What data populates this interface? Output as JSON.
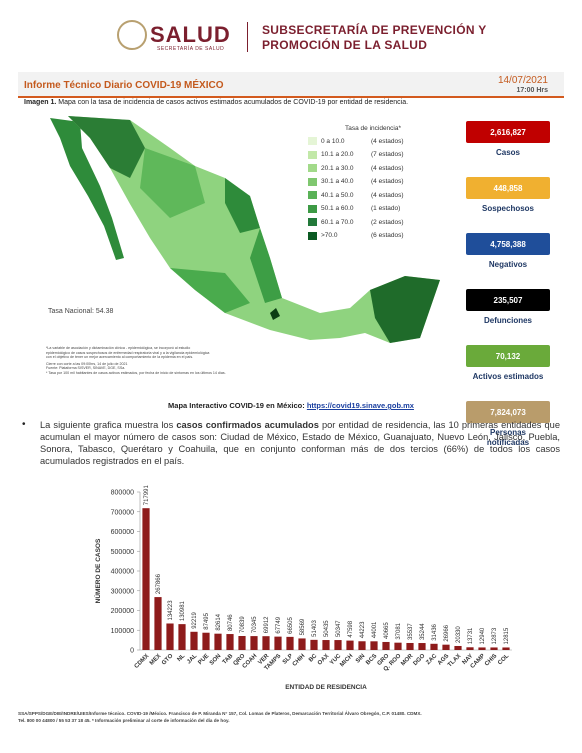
{
  "header": {
    "logo": "SALUD",
    "logo_sub": "SECRETARÍA DE SALUD",
    "subtitle_1": "SUBSECRETARÍA DE PREVENCIÓN Y",
    "subtitle_2": "PROMOCIÓN DE LA SALUD"
  },
  "report": {
    "title": "Informe Técnico Diario COVID-19 MÉXICO",
    "date": "14/07/2021",
    "time": "17:00 Hrs"
  },
  "map": {
    "caption_label": "Imagen 1.",
    "caption": "Mapa con la tasa de incidencia de casos activos estimados acumulados de COVID-19 por entidad de residencia.",
    "legend_title": "Tasa de incidencia*",
    "legend": [
      {
        "range": "0  a  10.0",
        "count": "(4 estados)"
      },
      {
        "range": "10.1 a  20.0",
        "count": "(7 estados)"
      },
      {
        "range": "20.1 a  30.0",
        "count": "(4 estados)"
      },
      {
        "range": "30.1 a  40.0",
        "count": "(4 estados)"
      },
      {
        "range": "40.1 a  50.0",
        "count": "(4 estados)"
      },
      {
        "range": "50.1 a  60.0",
        "count": "(1 estado)"
      },
      {
        "range": "60.1 a  70.0",
        "count": "(2 estados)"
      },
      {
        "range": ">70.0",
        "count": "(6 estados)"
      }
    ],
    "national_rate": "Tasa Nacional: 54.38",
    "notes": [
      "*La variable de asociación y dictaminación clínica - epidemiológica, se incorporó al estudio",
      "epidemiológico de casos sospechosos de enfermedad respiratoria viral y a la vigilancia epidemiológica",
      "con el objetivo de tener un mejor acercamiento al comportamiento de la epidemia en el país.",
      "Cierre con corte a las 09:00hrs, 14 de julio de 2021",
      "Fuente: Plataforma SISVER, SINAVE, DGE, SSa.",
      "* Tasa por 100 mil habitantes de casos activos estimados, por fecha de inicio de síntomas en los últimos 14 días."
    ],
    "link_label": "Mapa Interactivo COVID-19 en México:",
    "link": "https://covid19.sinave.gob.mx"
  },
  "stats": [
    {
      "value": "2,616,827",
      "label": "Casos"
    },
    {
      "value": "448,858",
      "label": "Sospechosos"
    },
    {
      "value": "4,758,388",
      "label": "Negativos"
    },
    {
      "value": "235,507",
      "label": "Defunciones"
    },
    {
      "value": "70,132",
      "label": "Activos estimados"
    },
    {
      "value": "7,824,073",
      "label": "Personas notificadas"
    }
  ],
  "paragraph": {
    "before": "La siguiente grafica muestra los ",
    "bold": "casos confirmados acumulados",
    "after": " por entidad de residencia, las 10 primeras entidades que acumulan el mayor número de casos son: Ciudad de México, Estado de México, Guanajuato, Nuevo León, Jalisco, Puebla, Sonora, Tabasco, Querétaro y Coahuila, que en conjunto conforman más de dos tercios (66%) de todos los casos acumulados registrados en el país."
  },
  "chart": {
    "type": "bar",
    "color": "#8e1b1b",
    "y_label": "NÚMERO DE CASOS",
    "x_label": "ENTIDAD DE RESIDENCIA",
    "categories": [
      "CDMX",
      "MEX",
      "GTO",
      "NL",
      "JAL",
      "PUE",
      "SON",
      "TAB",
      "QRO",
      "COAH",
      "VER",
      "TAMPS",
      "SLP",
      "CHIH",
      "BC",
      "OAX",
      "YUC",
      "MICH",
      "SIN",
      "BCS",
      "GRO",
      "Q. ROO",
      "MOR",
      "DGO",
      "ZAC",
      "AGS",
      "TLAX",
      "NAY",
      "CAMP",
      "CHIS",
      "COL"
    ],
    "values": [
      717991,
      267866,
      134223,
      130981,
      92219,
      87495,
      82614,
      80746,
      70839,
      70345,
      69912,
      67749,
      66505,
      58569,
      51403,
      50435,
      50347,
      47598,
      44223,
      44001,
      40665,
      37081,
      35537,
      35244,
      31436,
      26966,
      20330,
      13731,
      12940,
      12873,
      12815
    ],
    "ylim": [
      0,
      800000
    ],
    "yticks": [
      0,
      100000,
      200000,
      300000,
      400000,
      500000,
      600000,
      700000,
      800000
    ]
  },
  "footer": {
    "line_1": "SSA/SPPS/DGE/DIE/INDRE/UIES/Informe técnico. COVID-19 /México. Francisco de P. Miranda N° 157, Col. Lomas de Plateros, Demarcación Territorial Álvaro Obregón, C.P. 01480. CDMX.",
    "line_2": "Tel. 800 00 44800 / 55 53 37 18 45. * Información preliminar al corte de información del día de hoy."
  }
}
